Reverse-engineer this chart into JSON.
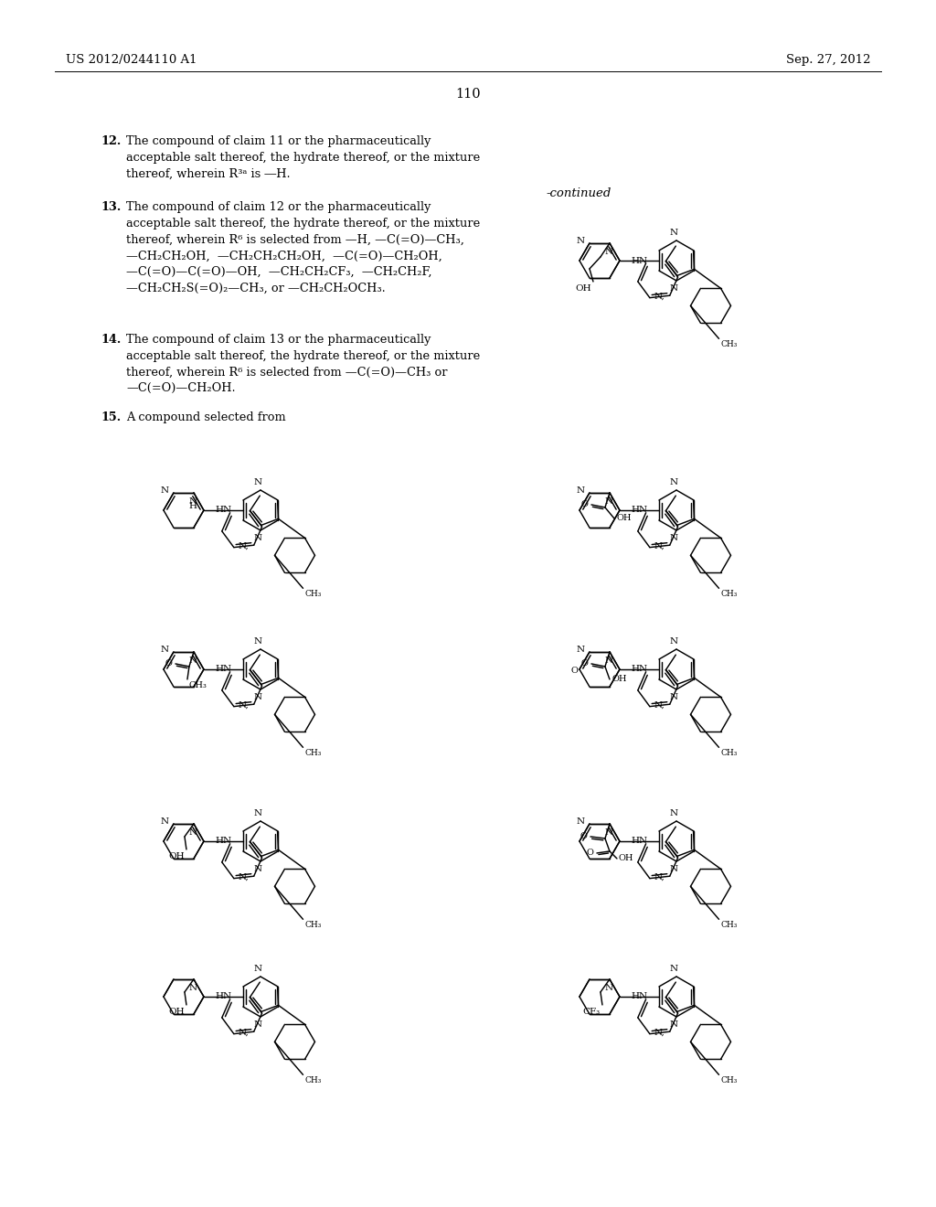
{
  "bg": "#ffffff",
  "header_left": "US 2012/0244110 A1",
  "header_right": "Sep. 27, 2012",
  "page_num": "110",
  "continued": "-continued",
  "claim12": "The compound of claim 11 or the pharmaceutically\nacceptable salt thereof, the hydrate thereof, or the mixture\nthereof, wherein R³ᵃ is ―H.",
  "claim13": "The compound of claim 12 or the pharmaceutically\nacceptable salt thereof, the hydrate thereof, or the mixture\nthereof, wherein R⁶ is selected from —H, —C(=O)—CH₃,\n—CH₂CH₂OH,  —CH₂CH₂CH₂OH,  —C(=O)—CH₂OH,\n—C(=O)—C(=O)—OH,  —CH₂CH₂CF₃,  —CH₂CH₂F,\n—CH₂CH₂S(=O)₂—CH₃, or —CH₂CH₂OCH₃.",
  "claim14": "The compound of claim 13 or the pharmaceutically\nacceptable salt thereof, the hydrate thereof, or the mixture\nthereof, wherein R⁶ is selected from —C(=O)—CH₃ or\n—C(=O)—CH₂OH.",
  "claim15": "A compound selected from"
}
